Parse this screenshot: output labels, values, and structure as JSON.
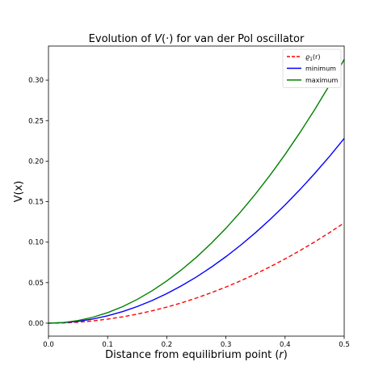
{
  "chart_data": {
    "type": "line",
    "title": "Evolution of V(·) for van der Pol oscillator",
    "title_parts": {
      "prefix": "Evolution of ",
      "var": "V",
      "suffix": "(·) for van der Pol oscillator"
    },
    "xlabel": "Distance from equilibrium point (r)",
    "xlabel_parts": {
      "prefix": "Distance from equilibrium point (",
      "var": "r",
      "suffix": ")"
    },
    "ylabel": "V(x)",
    "xlim": [
      0.0,
      0.5
    ],
    "ylim": [
      -0.016,
      0.342
    ],
    "xticks": [
      "0.0",
      "0.1",
      "0.2",
      "0.3",
      "0.4",
      "0.5"
    ],
    "yticks": [
      "0.00",
      "0.05",
      "0.10",
      "0.15",
      "0.20",
      "0.25",
      "0.30"
    ],
    "grid": false,
    "legend_position": "top-right",
    "x": [
      0.0,
      0.025,
      0.05,
      0.075,
      0.1,
      0.125,
      0.15,
      0.175,
      0.2,
      0.225,
      0.25,
      0.275,
      0.3,
      0.325,
      0.35,
      0.375,
      0.4,
      0.425,
      0.45,
      0.475,
      0.5
    ],
    "series": [
      {
        "name": "ϱ1(r)",
        "legend_parts": {
          "base": "ϱ",
          "sub": "1",
          "suffix": "(r)"
        },
        "color": "#ff0000",
        "dashed": true,
        "values": [
          0.0,
          0.0003,
          0.0012,
          0.0028,
          0.005,
          0.0078,
          0.0112,
          0.0152,
          0.0198,
          0.0251,
          0.031,
          0.0375,
          0.0446,
          0.0523,
          0.0607,
          0.0697,
          0.0793,
          0.0895,
          0.1003,
          0.1117,
          0.1238
        ]
      },
      {
        "name": "minimum",
        "color": "#0000ff",
        "dashed": false,
        "values": [
          0.0,
          0.0006,
          0.0023,
          0.0051,
          0.0091,
          0.0142,
          0.0205,
          0.0279,
          0.0365,
          0.0462,
          0.057,
          0.069,
          0.0821,
          0.0963,
          0.1117,
          0.1282,
          0.1459,
          0.1647,
          0.1847,
          0.2057,
          0.228
        ]
      },
      {
        "name": "maximum",
        "color": "#008000",
        "dashed": false,
        "values": [
          0.0,
          0.0008,
          0.0033,
          0.0073,
          0.013,
          0.0203,
          0.0293,
          0.0399,
          0.0521,
          0.0659,
          0.0813,
          0.0984,
          0.1171,
          0.1375,
          0.1594,
          0.183,
          0.2082,
          0.2351,
          0.2635,
          0.2936,
          0.3254
        ]
      }
    ]
  }
}
